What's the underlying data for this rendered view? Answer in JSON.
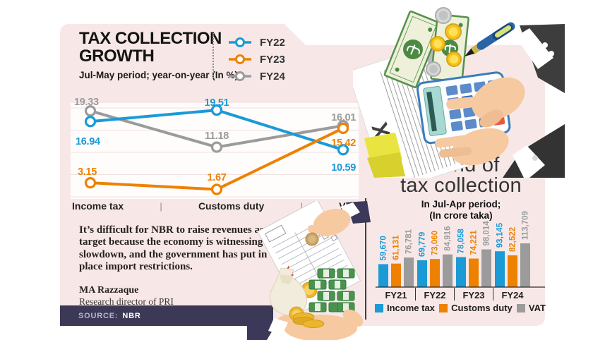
{
  "header": {
    "title_line1": "TAX COLLECTION",
    "title_line2": "GROWTH",
    "subtitle": "Jul-May period; year-on-year (In %)"
  },
  "quote": {
    "text": "It’s difficult for NBR to raise revenues as per target because the economy is witnessing slowdown, and the government has put in place import restrictions.",
    "author": "MA Razzaque",
    "author_title": "Research director of PRI"
  },
  "source": {
    "label": "SOURCE:",
    "value": "NBR"
  },
  "trend": {
    "title_line1": "Trend of",
    "title_line2": "tax collection",
    "subtitle_line1": "In Jul-Apr period;",
    "subtitle_line2": "(In crore taka)"
  },
  "illustrations": {
    "tax_doc_label": "TAX",
    "invoice_label": "TAX",
    "currency_symbol": "৳"
  },
  "colors": {
    "income_tax": "#1b9ad6",
    "customs_duty": "#ee8100",
    "vat": "#9b9b9b",
    "panel_bg": "#f7e8e7",
    "source_bar_bg": "#3c3957",
    "divider": "#3f3f3f"
  },
  "chart_data": [
    {
      "type": "line",
      "title": "TAX COLLECTION GROWTH",
      "subtitle": "Jul-May period; year-on-year (In %)",
      "categories": [
        "Income tax",
        "Customs duty",
        "VAT"
      ],
      "series": [
        {
          "name": "FY22",
          "color": "#1b9ad6",
          "values": [
            16.94,
            19.51,
            10.59
          ],
          "labels": [
            "16.94",
            "19.51",
            "10.59"
          ]
        },
        {
          "name": "FY23",
          "color": "#ee8100",
          "values": [
            3.15,
            1.67,
            15.42
          ],
          "labels": [
            "3.15",
            "1.67",
            "15.42"
          ]
        },
        {
          "name": "FY24",
          "color": "#9b9b9b",
          "values": [
            19.33,
            11.18,
            16.01
          ],
          "labels": [
            "19.33",
            "11.18",
            "16.01"
          ]
        }
      ],
      "ylim": [
        0,
        22
      ],
      "grid": true,
      "legend_position": "top-right"
    },
    {
      "type": "bar",
      "title": "Trend of tax collection",
      "subtitle": "In Jul-Apr period; (In crore taka)",
      "categories": [
        "FY21",
        "FY22",
        "FY23",
        "FY24"
      ],
      "series": [
        {
          "name": "Income tax",
          "color": "#1b9ad6",
          "values": [
            59670,
            69779,
            78058,
            93145
          ],
          "labels": [
            "59,670",
            "69,779",
            "78,058",
            "93,145"
          ]
        },
        {
          "name": "Customs duty",
          "color": "#ee8100",
          "values": [
            61131,
            73060,
            74221,
            82522
          ],
          "labels": [
            "61,131",
            "73,060",
            "74,221",
            "82,522"
          ]
        },
        {
          "name": "VAT",
          "color": "#9b9b9b",
          "values": [
            76781,
            84916,
            98014,
            113709
          ],
          "labels": [
            "76,781",
            "84,916",
            "98,014",
            "113,709"
          ]
        }
      ],
      "ylim": [
        0,
        113709
      ],
      "legend_position": "bottom"
    }
  ]
}
